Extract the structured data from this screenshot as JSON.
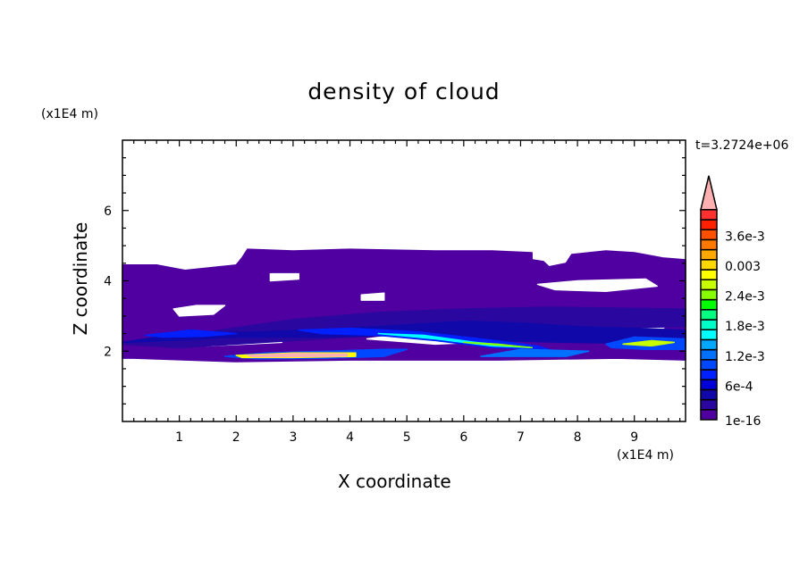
{
  "chart_data": {
    "type": "heatmap",
    "title": "density of cloud",
    "xlabel": "X coordinate",
    "ylabel": "Z coordinate",
    "x_unit": "(x1E4 m)",
    "y_unit": "(x1E4 m)",
    "annotation": "t=3.2724e+06",
    "xlim": [
      0,
      9.9
    ],
    "ylim": [
      0,
      8
    ],
    "x_ticks": [
      1,
      2,
      3,
      4,
      5,
      6,
      7,
      8,
      9
    ],
    "y_ticks": [
      2,
      4,
      6
    ],
    "grid": false,
    "colorbar": {
      "placement": "right",
      "tick_labels": [
        "1e-16",
        "6e-4",
        "1.2e-3",
        "1.8e-3",
        "2.4e-3",
        "0.003",
        "3.6e-3"
      ],
      "tick_levels": [
        0,
        3,
        6,
        9,
        12,
        15,
        18
      ],
      "colors": [
        "#5000a0",
        "#2a08a0",
        "#1008a8",
        "#0000d8",
        "#0020ff",
        "#0048ff",
        "#0070ff",
        "#00a8ff",
        "#00ffff",
        "#00ffc8",
        "#00ff80",
        "#00ff00",
        "#88ff00",
        "#c8ff00",
        "#ffff00",
        "#ffd800",
        "#ffa800",
        "#ff7800",
        "#ff5000",
        "#ff2000",
        "#ff3030"
      ],
      "overflow_color": "#ffb0b0"
    },
    "regions": [
      {
        "level": 0,
        "points": [
          [
            0,
            1.8
          ],
          [
            0,
            4.45
          ],
          [
            0.6,
            4.45
          ],
          [
            1.1,
            4.3
          ],
          [
            1.7,
            4.4
          ],
          [
            2.0,
            4.45
          ],
          [
            2.1,
            4.65
          ],
          [
            2.2,
            4.9
          ],
          [
            3.0,
            4.85
          ],
          [
            4.0,
            4.9
          ],
          [
            5.5,
            4.85
          ],
          [
            6.5,
            4.85
          ],
          [
            7.2,
            4.8
          ],
          [
            7.2,
            4.6
          ],
          [
            7.4,
            4.55
          ],
          [
            7.5,
            4.4
          ],
          [
            7.8,
            4.5
          ],
          [
            7.9,
            4.75
          ],
          [
            8.5,
            4.85
          ],
          [
            9.0,
            4.8
          ],
          [
            9.5,
            4.65
          ],
          [
            9.9,
            4.6
          ],
          [
            9.9,
            1.75
          ],
          [
            8.7,
            1.8
          ],
          [
            6.6,
            1.75
          ],
          [
            4.0,
            1.75
          ],
          [
            2.0,
            1.7
          ],
          [
            0.2,
            1.8
          ]
        ]
      },
      {
        "level": -1,
        "points": [
          [
            1.0,
            3.0
          ],
          [
            1.6,
            3.05
          ],
          [
            1.8,
            3.3
          ],
          [
            1.3,
            3.3
          ],
          [
            0.9,
            3.2
          ]
        ]
      },
      {
        "level": -1,
        "points": [
          [
            7.3,
            3.9
          ],
          [
            8.0,
            4.0
          ],
          [
            9.2,
            4.05
          ],
          [
            9.4,
            3.85
          ],
          [
            8.5,
            3.7
          ],
          [
            7.6,
            3.75
          ]
        ]
      },
      {
        "level": -1,
        "points": [
          [
            4.2,
            3.6
          ],
          [
            4.6,
            3.65
          ],
          [
            4.6,
            3.45
          ],
          [
            4.2,
            3.45
          ]
        ]
      },
      {
        "level": -1,
        "points": [
          [
            2.6,
            4.2
          ],
          [
            3.1,
            4.2
          ],
          [
            3.1,
            4.05
          ],
          [
            2.6,
            4.0
          ]
        ]
      },
      {
        "level": -1,
        "points": [
          [
            7.6,
            2.7
          ],
          [
            8.8,
            2.85
          ],
          [
            9.6,
            2.75
          ],
          [
            9.3,
            2.45
          ],
          [
            8.3,
            2.45
          ],
          [
            7.6,
            2.55
          ]
        ]
      },
      {
        "level": -1,
        "points": [
          [
            4.3,
            2.35
          ],
          [
            5.5,
            2.2
          ],
          [
            6.2,
            2.25
          ],
          [
            6.0,
            2.45
          ],
          [
            5.0,
            2.5
          ]
        ]
      },
      {
        "level": -1,
        "points": [
          [
            0.4,
            2.2
          ],
          [
            1.5,
            2.15
          ],
          [
            2.8,
            2.25
          ],
          [
            2.6,
            2.35
          ],
          [
            1.2,
            2.35
          ]
        ]
      },
      {
        "level": 1,
        "points": [
          [
            0,
            2.2
          ],
          [
            1.5,
            2.55
          ],
          [
            3.0,
            2.9
          ],
          [
            4.5,
            3.1
          ],
          [
            6.0,
            3.2
          ],
          [
            7.5,
            3.25
          ],
          [
            9.9,
            3.2
          ],
          [
            9.9,
            2.7
          ],
          [
            7.0,
            2.6
          ],
          [
            5.0,
            2.5
          ],
          [
            3.0,
            2.3
          ],
          [
            1.0,
            2.1
          ]
        ]
      },
      {
        "level": 2,
        "points": [
          [
            0,
            2.25
          ],
          [
            1.0,
            2.5
          ],
          [
            2.5,
            2.55
          ],
          [
            4.0,
            2.65
          ],
          [
            6.0,
            2.85
          ],
          [
            7.0,
            2.8
          ],
          [
            8.0,
            2.7
          ],
          [
            9.9,
            2.6
          ],
          [
            9.9,
            2.2
          ],
          [
            7.8,
            2.25
          ],
          [
            6.5,
            2.3
          ],
          [
            5.0,
            2.45
          ],
          [
            3.5,
            2.4
          ],
          [
            2.0,
            2.4
          ],
          [
            0.8,
            2.3
          ]
        ]
      },
      {
        "level": 4,
        "points": [
          [
            0.4,
            2.45
          ],
          [
            1.2,
            2.6
          ],
          [
            2.0,
            2.5
          ],
          [
            1.4,
            2.42
          ],
          [
            0.7,
            2.4
          ]
        ]
      },
      {
        "level": 4,
        "points": [
          [
            3.1,
            2.6
          ],
          [
            4.0,
            2.65
          ],
          [
            5.2,
            2.55
          ],
          [
            6.3,
            2.35
          ],
          [
            7.3,
            2.15
          ],
          [
            7.5,
            2.05
          ],
          [
            6.5,
            2.1
          ],
          [
            5.5,
            2.3
          ],
          [
            4.5,
            2.45
          ],
          [
            3.5,
            2.5
          ]
        ]
      },
      {
        "level": 8,
        "points": [
          [
            4.5,
            2.5
          ],
          [
            5.3,
            2.45
          ],
          [
            6.2,
            2.25
          ],
          [
            7.2,
            2.1
          ],
          [
            6.5,
            2.15
          ],
          [
            5.5,
            2.35
          ]
        ]
      },
      {
        "level": 12,
        "points": [
          [
            6.0,
            2.25
          ],
          [
            6.8,
            2.15
          ],
          [
            7.2,
            2.1
          ],
          [
            6.6,
            2.2
          ]
        ]
      },
      {
        "level": 5,
        "points": [
          [
            8.5,
            2.2
          ],
          [
            9.0,
            2.4
          ],
          [
            9.9,
            2.35
          ],
          [
            9.9,
            2.05
          ],
          [
            9.2,
            2.05
          ],
          [
            8.6,
            2.1
          ]
        ]
      },
      {
        "level": 13,
        "points": [
          [
            8.8,
            2.2
          ],
          [
            9.3,
            2.3
          ],
          [
            9.7,
            2.25
          ],
          [
            9.3,
            2.15
          ]
        ]
      },
      {
        "level": 6,
        "points": [
          [
            6.3,
            1.85
          ],
          [
            7.8,
            1.85
          ],
          [
            8.2,
            2.0
          ],
          [
            7.0,
            2.05
          ]
        ]
      },
      {
        "level": 5,
        "points": [
          [
            1.8,
            1.85
          ],
          [
            2.5,
            1.95
          ],
          [
            3.6,
            2.0
          ],
          [
            4.6,
            2.05
          ],
          [
            5.0,
            2.05
          ],
          [
            4.6,
            1.85
          ],
          [
            3.6,
            1.8
          ],
          [
            2.4,
            1.78
          ]
        ]
      },
      {
        "level": 14,
        "points": [
          [
            2.0,
            1.88
          ],
          [
            3.0,
            1.95
          ],
          [
            4.1,
            1.95
          ],
          [
            4.1,
            1.85
          ],
          [
            3.0,
            1.82
          ],
          [
            2.1,
            1.82
          ]
        ]
      },
      {
        "level": 21,
        "points": [
          [
            2.2,
            1.88
          ],
          [
            3.0,
            1.93
          ],
          [
            3.95,
            1.92
          ],
          [
            3.95,
            1.86
          ],
          [
            3.0,
            1.84
          ],
          [
            2.3,
            1.84
          ]
        ]
      }
    ]
  }
}
